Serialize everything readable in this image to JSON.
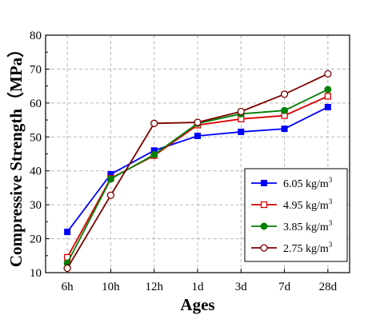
{
  "chart_data": {
    "type": "line",
    "xlabel": "Ages",
    "ylabel": "Compressive Strength（MPa）",
    "categories": [
      "6h",
      "10h",
      "12h",
      "1d",
      "3d",
      "7d",
      "28d"
    ],
    "ylim": [
      10,
      80
    ],
    "yticks": [
      10,
      20,
      30,
      40,
      50,
      60,
      70,
      80
    ],
    "grid": true,
    "legend_position": "bottom-right",
    "series": [
      {
        "name": "6.05 kg/m",
        "unit_sup": "3",
        "color": "#0000ff",
        "marker": "filled-square",
        "values": [
          22.0,
          39.0,
          46.0,
          50.3,
          51.5,
          52.4,
          58.8
        ]
      },
      {
        "name": "4.95 kg/m",
        "unit_sup": "3",
        "color": "#dd0000",
        "marker": "open-square",
        "values": [
          14.5,
          37.8,
          44.5,
          53.5,
          55.3,
          56.3,
          62.0
        ]
      },
      {
        "name": "3.85 kg/m",
        "unit_sup": "3",
        "color": "#008000",
        "marker": "filled-circle",
        "values": [
          12.8,
          37.6,
          44.8,
          54.0,
          56.8,
          57.8,
          64.0
        ]
      },
      {
        "name": "2.75 kg/m",
        "unit_sup": "3",
        "color": "#7a0000",
        "marker": "open-circle",
        "values": [
          11.3,
          32.8,
          54.0,
          54.3,
          57.5,
          62.6,
          68.6
        ]
      }
    ]
  }
}
